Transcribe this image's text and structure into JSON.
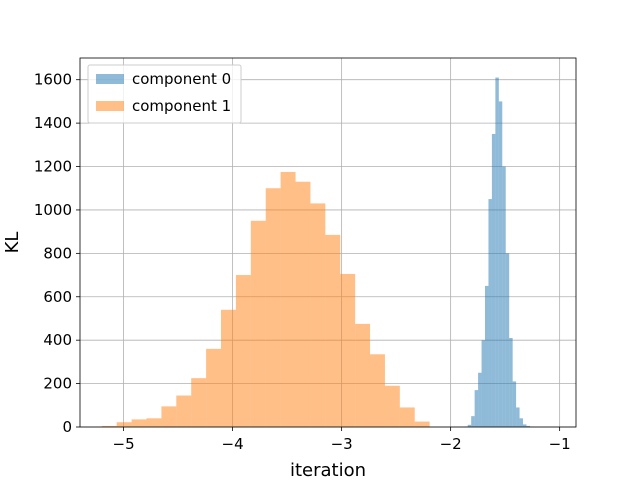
{
  "chart_data": {
    "type": "histogram",
    "xlabel": "iteration",
    "ylabel": "KL",
    "xlim": [
      -5.4,
      -0.85
    ],
    "ylim": [
      0,
      1700
    ],
    "xticks": [
      -5,
      -4,
      -3,
      -2,
      -1
    ],
    "xtick_labels": [
      "−5",
      "−4",
      "−3",
      "−2",
      "−1"
    ],
    "yticks": [
      0,
      200,
      400,
      600,
      800,
      1000,
      1200,
      1400,
      1600
    ],
    "ytick_labels": [
      "0",
      "200",
      "400",
      "600",
      "800",
      "1000",
      "1200",
      "1400",
      "1600"
    ],
    "grid": true,
    "legend_position": "top-left",
    "series": [
      {
        "name": "component 0",
        "color": "#1f77b4",
        "alpha": 0.5,
        "bin_start": -1.875,
        "bin_width": 0.0317,
        "counts": [
          2,
          10,
          50,
          170,
          250,
          400,
          650,
          1050,
          1350,
          1610,
          1500,
          1200,
          800,
          410,
          210,
          90,
          40,
          12,
          5,
          2
        ]
      },
      {
        "name": "component 1",
        "color": "#ff7f0e",
        "alpha": 0.5,
        "bin_start": -5.2,
        "bin_width": 0.1367,
        "counts": [
          5,
          22,
          35,
          40,
          95,
          145,
          225,
          360,
          540,
          700,
          950,
          1100,
          1175,
          1130,
          1030,
          885,
          705,
          475,
          335,
          190,
          90,
          25
        ]
      }
    ]
  }
}
